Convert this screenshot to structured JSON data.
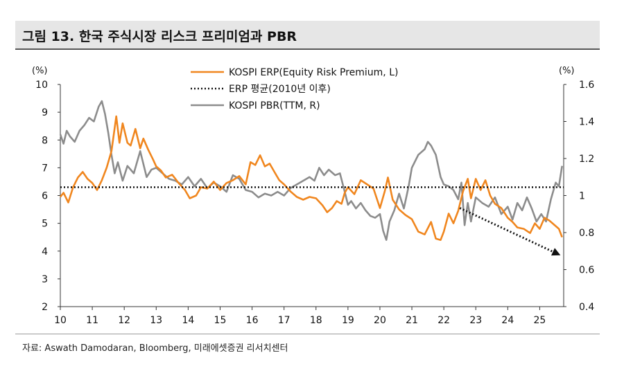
{
  "header": {
    "title": "그림 13. 한국 주식시장 리스크 프리미엄과 PBR"
  },
  "footer": {
    "source": "자료: Aswath Damodaran, Bloomberg, 미래에셋증권 리서치센터"
  },
  "chart_data": {
    "type": "line",
    "title": "그림 13. 한국 주식시장 리스크 프리미엄과 PBR",
    "xlabel": "",
    "y_left_unit": "(%)",
    "y_right_unit": "(%)",
    "xlim": [
      2010,
      2025.75
    ],
    "ylim_left": [
      2,
      10
    ],
    "ylim_right": [
      0.4,
      1.6
    ],
    "x_ticks": [
      {
        "x": 2010,
        "label": "10"
      },
      {
        "x": 2011,
        "label": "11"
      },
      {
        "x": 2012,
        "label": "12"
      },
      {
        "x": 2013,
        "label": "13"
      },
      {
        "x": 2014,
        "label": "14"
      },
      {
        "x": 2015,
        "label": "15"
      },
      {
        "x": 2016,
        "label": "16"
      },
      {
        "x": 2017,
        "label": "17"
      },
      {
        "x": 2018,
        "label": "18"
      },
      {
        "x": 2019,
        "label": "19"
      },
      {
        "x": 2020,
        "label": "20"
      },
      {
        "x": 2021,
        "label": "21"
      },
      {
        "x": 2022,
        "label": "22"
      },
      {
        "x": 2023,
        "label": "23"
      },
      {
        "x": 2024,
        "label": "24"
      },
      {
        "x": 2025,
        "label": "25"
      }
    ],
    "y_left_ticks": [
      "2",
      "3",
      "4",
      "5",
      "6",
      "7",
      "8",
      "9",
      "10"
    ],
    "y_right_ticks": [
      "0.4",
      "0.6",
      "0.8",
      "1",
      "1.2",
      "1.4",
      "1.6"
    ],
    "legend": [
      "KOSPI ERP(Equity Risk Premium, L)",
      "ERP 평균(2010년 이후)",
      "KOSPI PBR(TTM, R)"
    ],
    "series": [
      {
        "name": "KOSPI ERP(Equity Risk Premium, L)",
        "axis": "left",
        "color": "#f0861e",
        "x": [
          2010.0,
          2010.1,
          2010.25,
          2010.4,
          2010.55,
          2010.7,
          2010.85,
          2011.0,
          2011.15,
          2011.3,
          2011.45,
          2011.6,
          2011.75,
          2011.85,
          2011.95,
          2012.1,
          2012.2,
          2012.35,
          2012.5,
          2012.6,
          2012.75,
          2012.9,
          2013.0,
          2013.15,
          2013.3,
          2013.5,
          2013.7,
          2013.9,
          2014.05,
          2014.25,
          2014.4,
          2014.6,
          2014.8,
          2015.0,
          2015.2,
          2015.4,
          2015.6,
          2015.8,
          2015.95,
          2016.1,
          2016.25,
          2016.4,
          2016.55,
          2016.7,
          2016.85,
          2017.0,
          2017.2,
          2017.4,
          2017.6,
          2017.8,
          2018.0,
          2018.2,
          2018.35,
          2018.5,
          2018.65,
          2018.8,
          2018.9,
          2019.0,
          2019.2,
          2019.4,
          2019.6,
          2019.8,
          2020.0,
          2020.15,
          2020.25,
          2020.4,
          2020.6,
          2020.8,
          2021.0,
          2021.2,
          2021.4,
          2021.6,
          2021.75,
          2021.9,
          2022.0,
          2022.15,
          2022.3,
          2022.45,
          2022.6,
          2022.75,
          2022.85,
          2023.0,
          2023.15,
          2023.3,
          2023.45,
          2023.6,
          2023.8,
          2024.0,
          2024.15,
          2024.3,
          2024.5,
          2024.7,
          2024.85,
          2025.0,
          2025.15,
          2025.3,
          2025.45,
          2025.6,
          2025.7
        ],
        "values": [
          5.95,
          6.1,
          5.75,
          6.3,
          6.65,
          6.85,
          6.6,
          6.45,
          6.2,
          6.55,
          7.0,
          7.6,
          8.85,
          7.9,
          8.6,
          7.9,
          7.8,
          8.4,
          7.7,
          8.05,
          7.65,
          7.3,
          7.05,
          6.9,
          6.65,
          6.75,
          6.45,
          6.2,
          5.9,
          6.0,
          6.3,
          6.25,
          6.5,
          6.2,
          6.45,
          6.55,
          6.7,
          6.4,
          7.2,
          7.1,
          7.45,
          7.05,
          7.15,
          6.85,
          6.55,
          6.4,
          6.15,
          5.95,
          5.85,
          5.95,
          5.9,
          5.65,
          5.4,
          5.55,
          5.8,
          5.7,
          6.1,
          6.3,
          6.05,
          6.55,
          6.4,
          6.25,
          5.55,
          6.15,
          6.65,
          5.85,
          5.5,
          5.3,
          5.15,
          4.7,
          4.6,
          5.05,
          4.45,
          4.4,
          4.7,
          5.35,
          5.0,
          5.45,
          6.15,
          6.6,
          5.9,
          6.6,
          6.2,
          6.55,
          6.0,
          5.7,
          5.55,
          5.2,
          5.05,
          4.85,
          4.8,
          4.65,
          5.0,
          4.8,
          5.2,
          5.1,
          4.95,
          4.8,
          4.5
        ]
      },
      {
        "name": "ERP 평균(2010년 이후)",
        "axis": "left",
        "color": "#111111",
        "x": [
          2010.0,
          2025.75
        ],
        "values": [
          6.3,
          6.3
        ]
      },
      {
        "name": "KOSPI PBR(TTM, R)",
        "axis": "right",
        "color": "#8c8c8c",
        "x": [
          2010.0,
          2010.1,
          2010.2,
          2010.3,
          2010.45,
          2010.6,
          2010.75,
          2010.9,
          2011.05,
          2011.2,
          2011.3,
          2011.4,
          2011.5,
          2011.6,
          2011.7,
          2011.8,
          2011.95,
          2012.1,
          2012.3,
          2012.5,
          2012.7,
          2012.85,
          2013.0,
          2013.2,
          2013.4,
          2013.6,
          2013.8,
          2014.0,
          2014.2,
          2014.4,
          2014.6,
          2014.8,
          2015.0,
          2015.2,
          2015.4,
          2015.6,
          2015.8,
          2016.0,
          2016.2,
          2016.4,
          2016.6,
          2016.8,
          2017.0,
          2017.2,
          2017.4,
          2017.6,
          2017.8,
          2017.95,
          2018.1,
          2018.25,
          2018.4,
          2018.6,
          2018.75,
          2018.9,
          2019.0,
          2019.1,
          2019.25,
          2019.4,
          2019.55,
          2019.7,
          2019.85,
          2020.0,
          2020.1,
          2020.2,
          2020.3,
          2020.45,
          2020.6,
          2020.75,
          2020.9,
          2021.0,
          2021.2,
          2021.4,
          2021.5,
          2021.6,
          2021.75,
          2021.9,
          2022.0,
          2022.15,
          2022.3,
          2022.45,
          2022.55,
          2022.65,
          2022.75,
          2022.85,
          2023.0,
          2023.2,
          2023.4,
          2023.6,
          2023.8,
          2024.0,
          2024.15,
          2024.3,
          2024.45,
          2024.6,
          2024.75,
          2024.9,
          2025.05,
          2025.2,
          2025.35,
          2025.5,
          2025.6,
          2025.7
        ],
        "values": [
          1.33,
          1.28,
          1.35,
          1.32,
          1.29,
          1.35,
          1.38,
          1.42,
          1.4,
          1.48,
          1.51,
          1.44,
          1.34,
          1.22,
          1.12,
          1.18,
          1.08,
          1.16,
          1.12,
          1.24,
          1.1,
          1.14,
          1.15,
          1.12,
          1.09,
          1.08,
          1.06,
          1.1,
          1.05,
          1.09,
          1.04,
          1.07,
          1.05,
          1.02,
          1.11,
          1.09,
          1.03,
          1.02,
          0.99,
          1.01,
          1.0,
          1.02,
          1.0,
          1.04,
          1.06,
          1.08,
          1.1,
          1.08,
          1.15,
          1.11,
          1.14,
          1.11,
          1.12,
          1.02,
          0.95,
          0.97,
          0.93,
          0.96,
          0.92,
          0.89,
          0.88,
          0.9,
          0.81,
          0.76,
          0.86,
          0.92,
          1.01,
          0.93,
          1.05,
          1.15,
          1.22,
          1.25,
          1.29,
          1.27,
          1.22,
          1.1,
          1.06,
          1.05,
          1.03,
          0.98,
          1.07,
          0.84,
          0.96,
          0.86,
          0.99,
          0.96,
          0.94,
          0.99,
          0.9,
          0.94,
          0.87,
          0.96,
          0.92,
          0.99,
          0.93,
          0.86,
          0.9,
          0.86,
          0.98,
          1.07,
          1.05,
          1.16
        ]
      }
    ],
    "annotations": [
      {
        "type": "trend-arrow",
        "axis": "left",
        "from": [
          2022.5,
          5.55
        ],
        "to": [
          2025.65,
          3.85
        ],
        "style": "dotted",
        "color": "#111111"
      }
    ]
  }
}
